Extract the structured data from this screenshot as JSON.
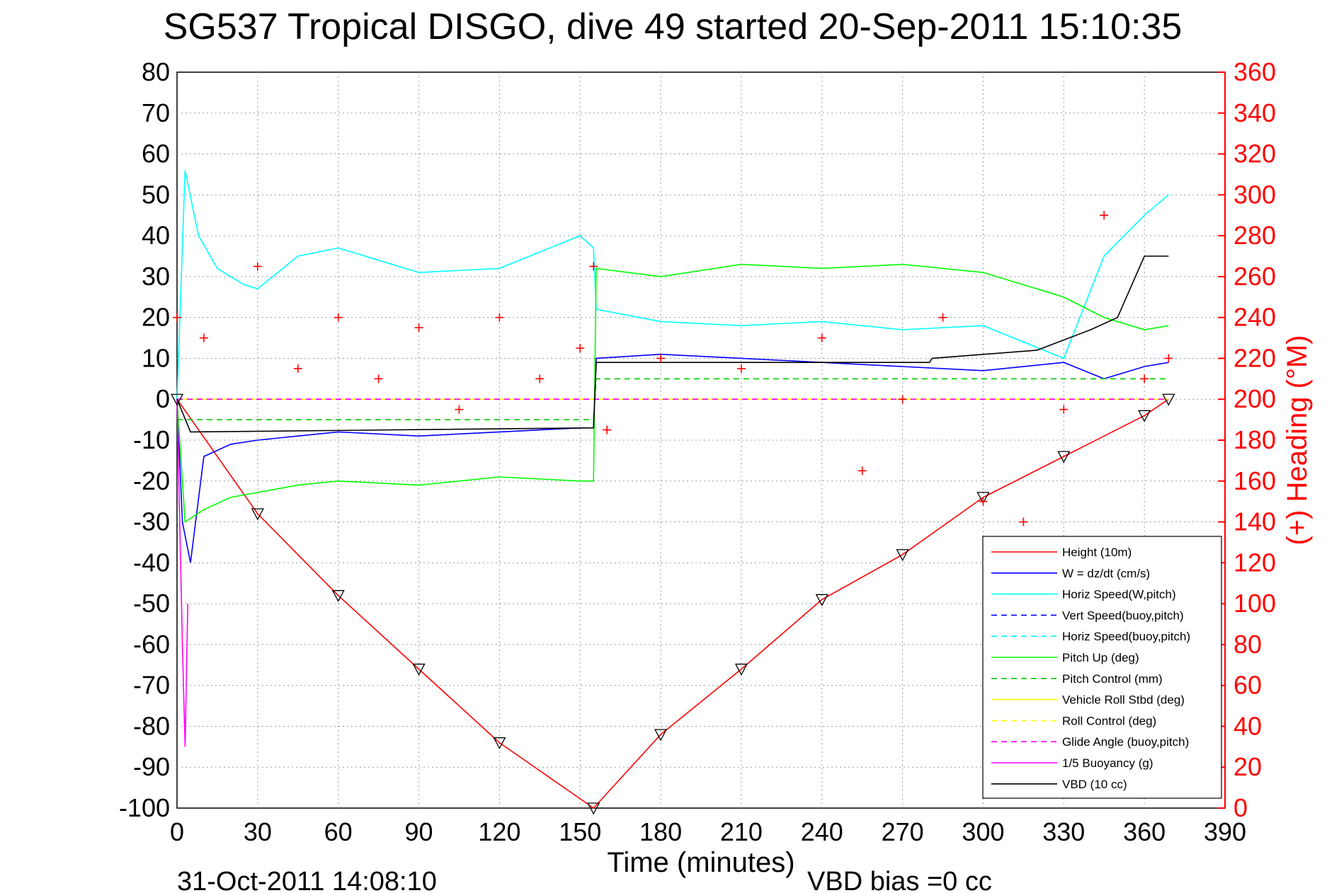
{
  "chart_data": {
    "type": "line",
    "title": "SG537 Tropical DISGO, dive 49 started 20-Sep-2011 15:10:35",
    "xlabel": "Time (minutes)",
    "ylabel_right": "(+) Heading (°M)",
    "footer_left": "31-Oct-2011 14:08:10",
    "footer_right": "VBD bias =0 cc",
    "xlim": [
      0,
      390
    ],
    "ylim": [
      -100,
      80
    ],
    "ylim_right": [
      0,
      360
    ],
    "grid": true,
    "legend_position": "bottom-right",
    "x_ticks": [
      "0",
      "30",
      "60",
      "90",
      "120",
      "150",
      "180",
      "210",
      "240",
      "270",
      "300",
      "330",
      "360",
      "390"
    ],
    "y_ticks": [
      "80",
      "70",
      "60",
      "50",
      "40",
      "30",
      "20",
      "10",
      "0",
      "-10",
      "-20",
      "-30",
      "-40",
      "-50",
      "-60",
      "-70",
      "-80",
      "-90",
      "-100"
    ],
    "y_right_ticks": [
      "360",
      "340",
      "320",
      "300",
      "280",
      "260",
      "240",
      "220",
      "200",
      "180",
      "160",
      "140",
      "120",
      "100",
      "80",
      "60",
      "40",
      "20",
      "0"
    ],
    "colors": {
      "height": "#ff0000",
      "w": "#0000ff",
      "horiz_speed": "#00ffff",
      "vert_speed_buoy": "#0000ff",
      "horiz_speed_buoy": "#00ffff",
      "pitch_up": "#00ff00",
      "pitch_control": "#00cc00",
      "roll": "#ffff00",
      "roll_control": "#ffff00",
      "glide_angle": "#ff00ff",
      "buoyancy": "#ff00ff",
      "vbd": "#000000",
      "heading": "#ff0000"
    },
    "series": [
      {
        "name": "Height (10m)",
        "key": "height",
        "x": [
          0,
          30,
          60,
          90,
          120,
          155,
          180,
          210,
          240,
          270,
          300,
          330,
          360,
          369
        ],
        "y": [
          0,
          -28,
          -48,
          -66,
          -84,
          -100,
          -82,
          -66,
          -49,
          -38,
          -24,
          -14,
          -4,
          0
        ]
      },
      {
        "name": "W = dz/dt (cm/s)",
        "key": "w",
        "x": [
          0,
          2,
          5,
          10,
          20,
          30,
          45,
          60,
          90,
          120,
          150,
          155,
          156,
          180,
          210,
          240,
          270,
          300,
          330,
          345,
          360,
          369
        ],
        "y": [
          0,
          -30,
          -40,
          -14,
          -11,
          -10,
          -9,
          -8,
          -9,
          -8,
          -7,
          -7,
          10,
          11,
          10,
          9,
          8,
          7,
          9,
          5,
          8,
          9
        ]
      },
      {
        "name": "Horiz Speed(W,pitch)",
        "key": "horiz_speed",
        "x": [
          0,
          3,
          8,
          15,
          25,
          30,
          45,
          60,
          90,
          120,
          150,
          155,
          156,
          180,
          210,
          240,
          270,
          300,
          330,
          345,
          360,
          369
        ],
        "y": [
          0,
          56,
          40,
          32,
          28,
          27,
          35,
          37,
          31,
          32,
          40,
          37,
          22,
          19,
          18,
          19,
          17,
          18,
          10,
          35,
          45,
          50
        ]
      },
      {
        "name": "Vert Speed(buoy,pitch)",
        "key": "vert_speed_buoy",
        "x": [
          0,
          369
        ],
        "y": [
          0,
          0
        ]
      },
      {
        "name": "Horiz Speed(buoy,pitch)",
        "key": "horiz_speed_buoy",
        "x": [
          0,
          369
        ],
        "y": [
          0,
          0
        ]
      },
      {
        "name": "Pitch Up (deg)",
        "key": "pitch_up",
        "x": [
          0,
          3,
          10,
          20,
          45,
          60,
          90,
          120,
          150,
          155,
          156,
          180,
          210,
          240,
          270,
          300,
          330,
          345,
          360,
          369
        ],
        "y": [
          0,
          -30,
          -27,
          -24,
          -21,
          -20,
          -21,
          -19,
          -20,
          -20,
          32,
          30,
          33,
          32,
          33,
          31,
          25,
          20,
          17,
          18
        ]
      },
      {
        "name": "Pitch Control (mm)",
        "key": "pitch_control",
        "x": [
          0,
          155,
          156,
          369
        ],
        "y": [
          -5,
          -5,
          5,
          5
        ]
      },
      {
        "name": "Vehicle Roll Stbd (deg)",
        "key": "roll",
        "x": [
          0,
          369
        ],
        "y": [
          0,
          0
        ]
      },
      {
        "name": "Roll Control (deg)",
        "key": "roll_control",
        "x": [
          0,
          369
        ],
        "y": [
          0,
          0
        ]
      },
      {
        "name": "Glide Angle (buoy,pitch)",
        "key": "glide_angle",
        "x": [
          0,
          369
        ],
        "y": [
          0,
          0
        ]
      },
      {
        "name": "1/5 Buoyancy (g)",
        "key": "buoyancy",
        "x": [
          0,
          2,
          3,
          4
        ],
        "y": [
          0,
          -60,
          -85,
          -50
        ]
      },
      {
        "name": "VBD (10 cc)",
        "key": "vbd",
        "x": [
          0,
          5,
          155,
          156,
          280,
          281,
          320,
          340,
          350,
          360,
          369
        ],
        "y": [
          0,
          -8,
          -7,
          9,
          9,
          10,
          12,
          17,
          20,
          35,
          35
        ]
      }
    ],
    "heading": {
      "name": "(+) Heading (°M)",
      "axis": "right",
      "x": [
        0,
        10,
        30,
        45,
        60,
        75,
        90,
        105,
        120,
        135,
        150,
        155,
        160,
        180,
        210,
        240,
        255,
        270,
        285,
        300,
        315,
        330,
        345,
        360,
        369
      ],
      "y": [
        240,
        230,
        265,
        215,
        240,
        210,
        235,
        195,
        240,
        210,
        225,
        265,
        185,
        220,
        215,
        230,
        165,
        200,
        240,
        150,
        140,
        195,
        290,
        210,
        220
      ]
    }
  }
}
